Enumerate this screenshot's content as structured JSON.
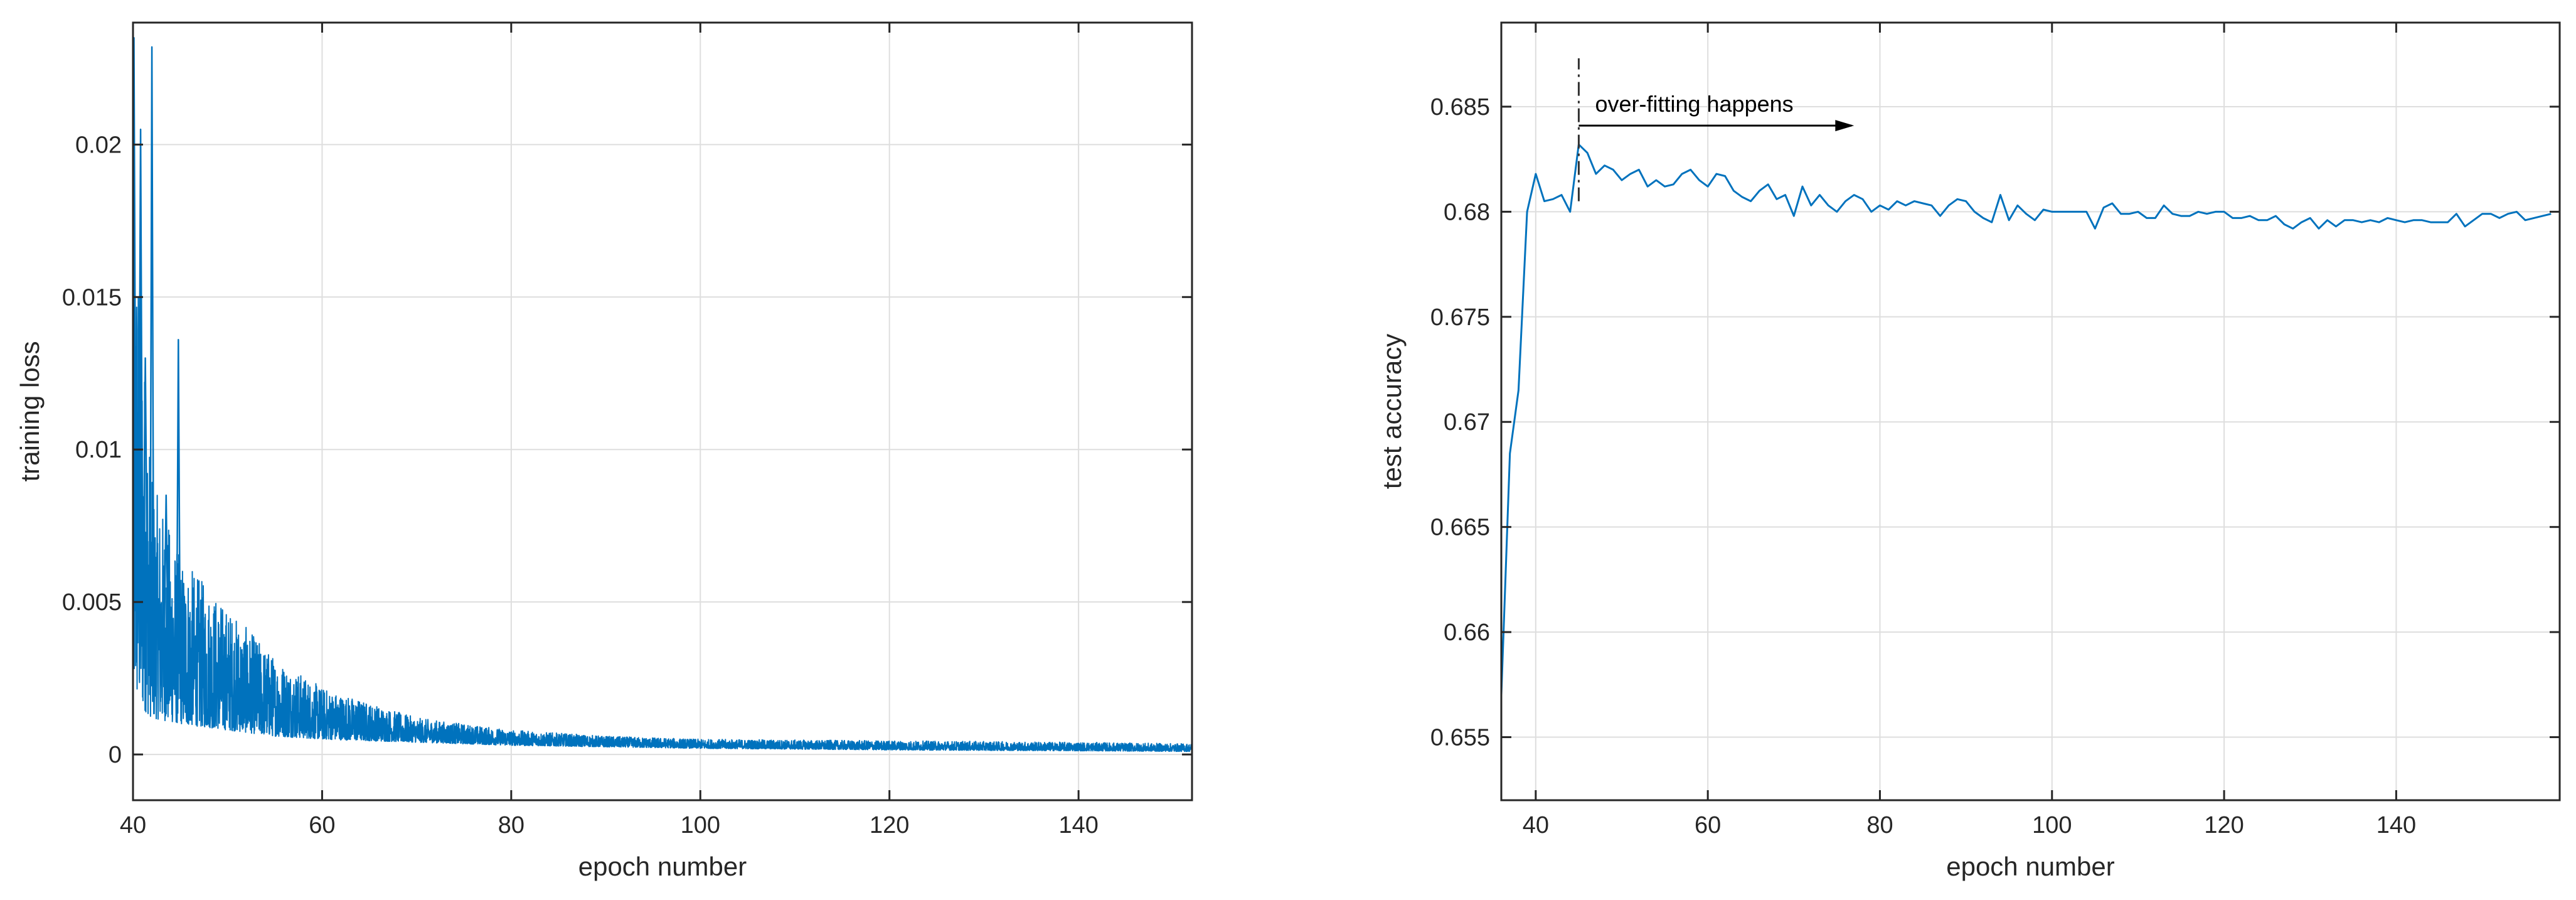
{
  "chart_data": [
    {
      "type": "line",
      "xlabel": "epoch number",
      "ylabel": "training loss",
      "xlim": [
        40,
        152
      ],
      "ylim": [
        -0.0015,
        0.024
      ],
      "xticks": [
        40,
        60,
        80,
        100,
        120,
        140
      ],
      "xtick_labels": [
        "40",
        "60",
        "80",
        "100",
        "120",
        "140"
      ],
      "yticks": [
        0,
        0.005,
        0.01,
        0.015,
        0.02
      ],
      "ytick_labels": [
        "0",
        "0.005",
        "0.01",
        "0.015",
        "0.02"
      ],
      "grid": true,
      "color": "#0072bd",
      "envelope": {
        "x": [
          40,
          42,
          45,
          50,
          55,
          60,
          70,
          80,
          90,
          100,
          120,
          140,
          152
        ],
        "upper": [
          0.02,
          0.009,
          0.0065,
          0.0048,
          0.0032,
          0.0022,
          0.0012,
          0.0008,
          0.0006,
          0.0005,
          0.00045,
          0.0004,
          0.00035
        ],
        "lower": [
          0.0018,
          0.0012,
          0.001,
          0.0008,
          0.0006,
          0.0005,
          0.0004,
          0.0003,
          0.00025,
          0.0002,
          0.00015,
          0.00012,
          0.0001
        ]
      },
      "spikes": [
        {
          "x": 40.1,
          "y": 0.0235
        },
        {
          "x": 40.8,
          "y": 0.0205
        },
        {
          "x": 42.0,
          "y": 0.0232
        },
        {
          "x": 41.3,
          "y": 0.013
        },
        {
          "x": 44.8,
          "y": 0.0136
        },
        {
          "x": 43.5,
          "y": 0.0085
        }
      ]
    },
    {
      "type": "line",
      "xlabel": "epoch number",
      "ylabel": "test accuracy",
      "xlim": [
        36,
        159
      ],
      "ylim": [
        0.652,
        0.689
      ],
      "xticks": [
        40,
        60,
        80,
        100,
        120,
        140
      ],
      "xtick_labels": [
        "40",
        "60",
        "80",
        "100",
        "120",
        "140"
      ],
      "yticks": [
        0.655,
        0.66,
        0.665,
        0.67,
        0.675,
        0.68,
        0.685
      ],
      "ytick_labels": [
        "0.655",
        "0.66",
        "0.665",
        "0.67",
        "0.675",
        "0.68",
        "0.685"
      ],
      "grid": true,
      "color": "#0072bd",
      "x": [
        36,
        37,
        38,
        39,
        40,
        41,
        42,
        43,
        44,
        45,
        46,
        47,
        48,
        49,
        50,
        51,
        52,
        53,
        54,
        55,
        56,
        57,
        58,
        59,
        60,
        61,
        62,
        63,
        64,
        65,
        66,
        67,
        68,
        69,
        70,
        71,
        72,
        73,
        74,
        75,
        76,
        77,
        78,
        79,
        80,
        81,
        82,
        83,
        84,
        85,
        86,
        87,
        88,
        89,
        90,
        91,
        92,
        93,
        94,
        95,
        96,
        97,
        98,
        99,
        100,
        101,
        102,
        103,
        104,
        105,
        106,
        107,
        108,
        109,
        110,
        111,
        112,
        113,
        114,
        115,
        116,
        117,
        118,
        119,
        120,
        121,
        122,
        123,
        124,
        125,
        126,
        127,
        128,
        129,
        130,
        131,
        132,
        133,
        134,
        135,
        136,
        137,
        138,
        139,
        140,
        141,
        142,
        143,
        144,
        145,
        146,
        147,
        148,
        149,
        150,
        151,
        152,
        153,
        154,
        155,
        156,
        157,
        158
      ],
      "y": [
        0.657,
        0.6685,
        0.6715,
        0.68,
        0.6818,
        0.6805,
        0.6806,
        0.6808,
        0.68,
        0.6832,
        0.6828,
        0.6818,
        0.6822,
        0.682,
        0.6815,
        0.6818,
        0.682,
        0.6812,
        0.6815,
        0.6812,
        0.6813,
        0.6818,
        0.682,
        0.6815,
        0.6812,
        0.6818,
        0.6817,
        0.681,
        0.6807,
        0.6805,
        0.681,
        0.6813,
        0.6806,
        0.6808,
        0.6798,
        0.6812,
        0.6803,
        0.6808,
        0.6803,
        0.68,
        0.6805,
        0.6808,
        0.6806,
        0.68,
        0.6803,
        0.6801,
        0.6805,
        0.6803,
        0.6805,
        0.6804,
        0.6803,
        0.6798,
        0.6803,
        0.6806,
        0.6805,
        0.68,
        0.6797,
        0.6795,
        0.6808,
        0.6796,
        0.6803,
        0.6799,
        0.6796,
        0.6801,
        0.68,
        0.68,
        0.68,
        0.68,
        0.68,
        0.6792,
        0.6802,
        0.6804,
        0.6799,
        0.6799,
        0.68,
        0.6797,
        0.6797,
        0.6803,
        0.6799,
        0.6798,
        0.6798,
        0.68,
        0.6799,
        0.68,
        0.68,
        0.6797,
        0.6797,
        0.6798,
        0.6796,
        0.6796,
        0.6798,
        0.6794,
        0.6792,
        0.6795,
        0.6797,
        0.6792,
        0.6796,
        0.6793,
        0.6796,
        0.6796,
        0.6795,
        0.6796,
        0.6795,
        0.6797,
        0.6796,
        0.6795,
        0.6796,
        0.6796,
        0.6795,
        0.6795,
        0.6795,
        0.6799,
        0.6793,
        0.6796,
        0.6799,
        0.6799,
        0.6797,
        0.6799,
        0.68,
        0.6796,
        0.6797,
        0.6798,
        0.6799
      ],
      "annotation": {
        "text": "over-fitting happens",
        "x": 45,
        "y_from": 0.6805,
        "y_to": 0.6873,
        "arrow_to_x": 77,
        "arrow_y": 0.6841
      }
    }
  ]
}
